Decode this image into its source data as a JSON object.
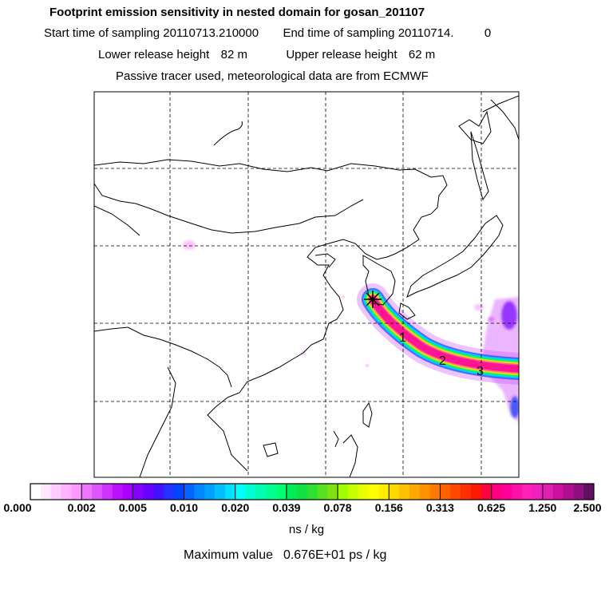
{
  "header": {
    "title": "Footprint emission sensitivity in nested domain for gosan_201107",
    "start_label": "Start time of sampling",
    "start_value": "20110713.210000",
    "end_label": "End time of sampling",
    "end_value": "20110714.",
    "end_tail": "0",
    "lower_label": "Lower release height",
    "lower_value": "82 m",
    "upper_label": "Upper release height",
    "upper_value": "62 m",
    "note": "Passive tracer used, meteorological data are from ECMWF"
  },
  "map": {
    "release_marker": "star-icon",
    "time_labels": [
      "1",
      "2",
      "3"
    ],
    "plume_colors": [
      "#ff1493",
      "#ffd000",
      "#00ff66",
      "#00ccff",
      "#a020f0"
    ]
  },
  "colorbar": {
    "tick_labels": [
      "0.000",
      "0.002",
      "0.005",
      "0.010",
      "0.020",
      "0.039",
      "0.078",
      "0.156",
      "0.313",
      "0.625",
      "1.250",
      "2.500"
    ],
    "segment_colors": [
      [
        "#ffffff",
        "#ffe6ff",
        "#ffccff",
        "#ffb3ff",
        "#ff99ff"
      ],
      [
        "#ee77ff",
        "#dd55ff",
        "#cc33ff",
        "#bb11ff",
        "#aa00ff"
      ],
      [
        "#8800ff",
        "#6600ff",
        "#4411ff",
        "#2233ff",
        "#0044ff"
      ],
      [
        "#0066ff",
        "#0088ff",
        "#00a0ff",
        "#00c0ff",
        "#00e0ff"
      ],
      [
        "#00ffff",
        "#00ffd0",
        "#00ffb0",
        "#00ff90",
        "#00ff70"
      ],
      [
        "#00ee55",
        "#10e040",
        "#30e030",
        "#55e020",
        "#80e010"
      ],
      [
        "#a0ff00",
        "#c8ff00",
        "#e8ff00",
        "#ffff00",
        "#ffee00"
      ],
      [
        "#ffd800",
        "#ffc000",
        "#ffa800",
        "#ff9000",
        "#ff7800"
      ],
      [
        "#ff6000",
        "#ff4800",
        "#ff3000",
        "#ff1800",
        "#ff0040"
      ],
      [
        "#ff0080",
        "#ff0099",
        "#ff10aa",
        "#ff20b8",
        "#f020c0"
      ],
      [
        "#e020b0",
        "#cc10a0",
        "#b01090",
        "#901080",
        "#601060"
      ]
    ],
    "unit": "ns / kg",
    "max_label": "Maximum value",
    "max_value": "0.676E+01 ps / kg"
  }
}
